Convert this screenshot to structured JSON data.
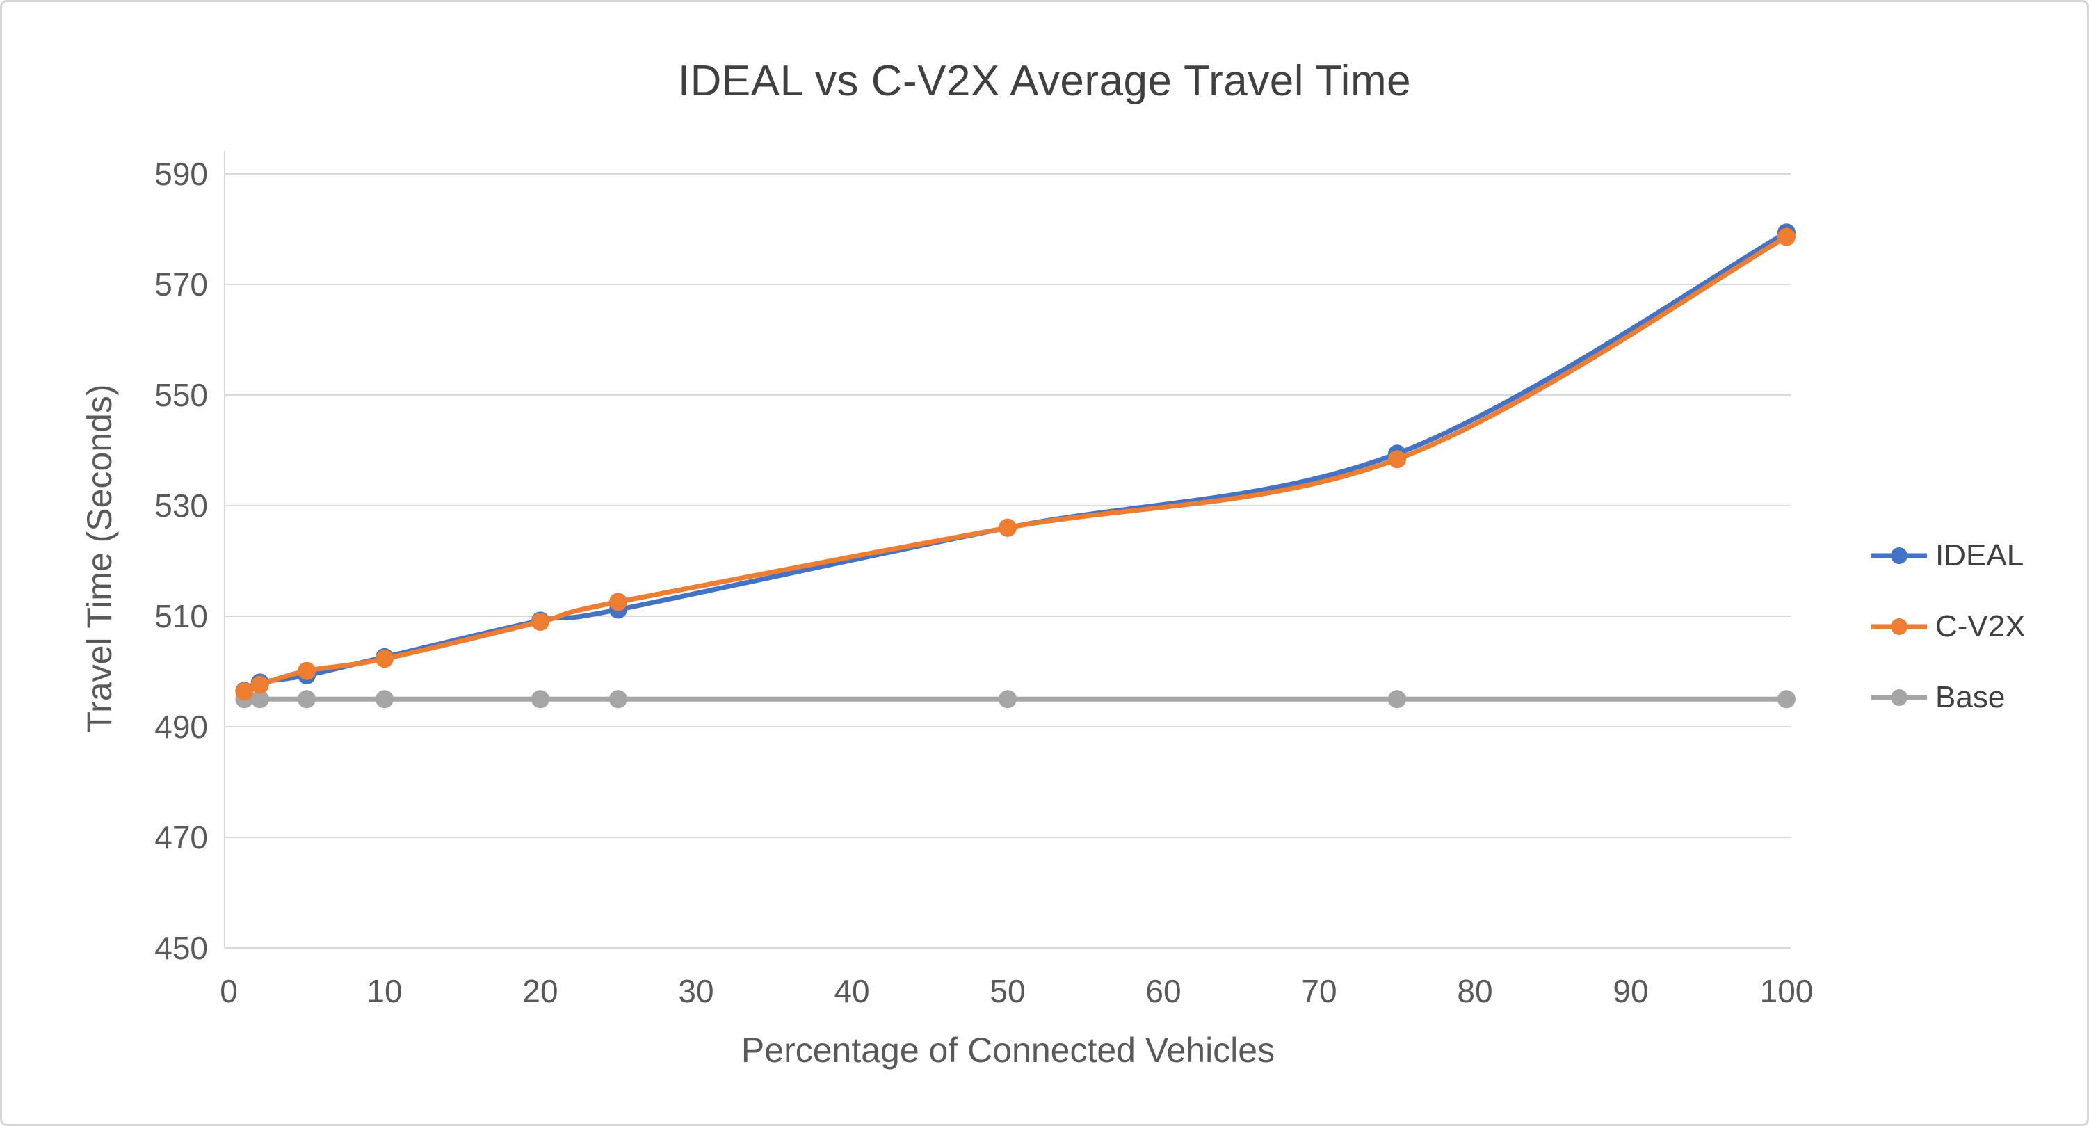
{
  "chart_data": {
    "type": "line",
    "title": "IDEAL vs C-V2X Average Travel Time",
    "xlabel": "Percentage of Connected Vehicles",
    "ylabel": "Travel Time (Seconds)",
    "x": [
      1,
      2,
      5,
      10,
      20,
      25,
      50,
      75,
      100
    ],
    "series": [
      {
        "name": "IDEAL",
        "color": "#4472C4",
        "values": [
          496.5,
          498.0,
          499.3,
          502.6,
          509.2,
          511.2,
          526.0,
          539.4,
          579.4
        ]
      },
      {
        "name": "C-V2X",
        "color": "#ED7D31",
        "values": [
          496.4,
          497.6,
          500.1,
          502.3,
          509.0,
          512.6,
          526.0,
          538.4,
          578.6
        ]
      },
      {
        "name": "Base",
        "color": "#A5A5A5",
        "values": [
          495,
          495,
          495,
          495,
          495,
          495,
          495,
          495,
          495
        ]
      }
    ],
    "xlim": [
      0,
      100
    ],
    "ylim": [
      450,
      590
    ],
    "xticks": [
      0,
      10,
      20,
      30,
      40,
      50,
      60,
      70,
      80,
      90,
      100
    ],
    "yticks": [
      450,
      470,
      490,
      510,
      530,
      550,
      570,
      590
    ],
    "grid": "horizontal",
    "legend_position": "right",
    "legend_entries": [
      "IDEAL",
      "C-V2X",
      "Base"
    ],
    "colors": {
      "grid": "#D9D9D9",
      "axis": "#D9D9D9",
      "tick_text": "#595959",
      "title_text": "#404040"
    }
  }
}
